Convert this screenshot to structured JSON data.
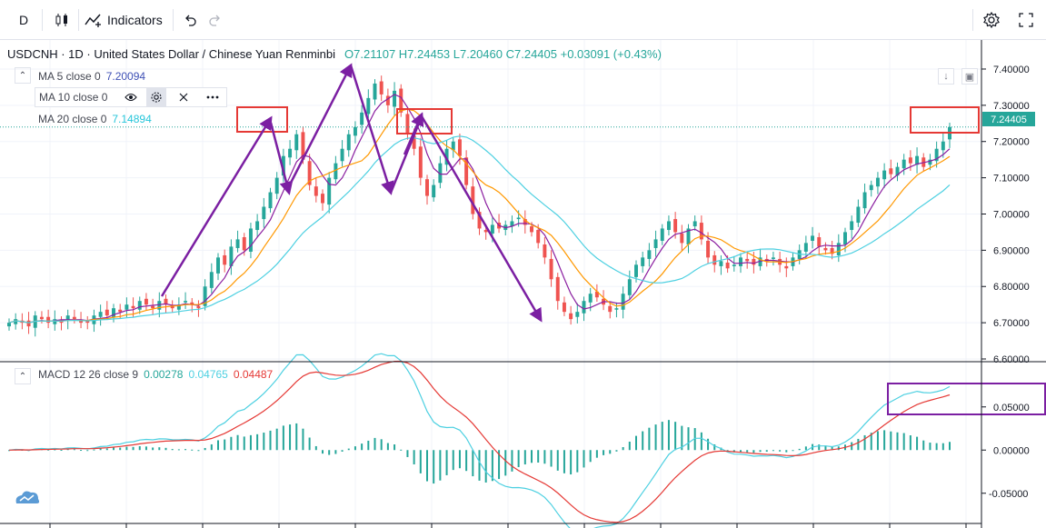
{
  "toolbar": {
    "interval_label": "D",
    "indicators_label": "Indicators"
  },
  "symbol": {
    "title": "USDCNH · 1D · United States Dollar / Chinese Yuan Renminbi",
    "ohlc": "O7.21107  H7.24453  L7.20460  C7.24405  +0.03091 (+0.43%)"
  },
  "indicators": {
    "ma5": {
      "label": "MA 5 close 0",
      "value": "7.20094"
    },
    "ma10": {
      "label": "MA 10 close 0"
    },
    "ma20": {
      "label": "MA 20 close 0",
      "value": "7.14894"
    },
    "macd": {
      "label": "MACD 12 26 close 9",
      "v1": "0.00278",
      "v2": "0.04765",
      "v3": "0.04487"
    }
  },
  "colors": {
    "up": "#26a69a",
    "down": "#ef5350",
    "ma5": "#8b1fa0",
    "ma10": "#ff9800",
    "ma20": "#4dd0e1",
    "macd_line": "#4dd0e1",
    "signal_line": "#e53935",
    "hist": "#26a69a",
    "annotation_red": "#e53935",
    "annotation_purple": "#7b1fa2"
  },
  "last_price_label": "7.24405",
  "chart_data": [
    {
      "type": "candlestick",
      "price_axis_ticks": [
        "7.40000",
        "7.30000",
        "7.20000",
        "7.10000",
        "7.00000",
        "6.90000",
        "6.80000",
        "6.70000",
        "6.60000"
      ],
      "ylim": [
        6.6,
        7.42
      ],
      "close_path": [
        6.7,
        6.71,
        6.7,
        6.69,
        6.72,
        6.71,
        6.7,
        6.71,
        6.7,
        6.72,
        6.71,
        6.7,
        6.7,
        6.72,
        6.73,
        6.72,
        6.74,
        6.73,
        6.75,
        6.74,
        6.76,
        6.75,
        6.74,
        6.76,
        6.75,
        6.74,
        6.75,
        6.76,
        6.75,
        6.74,
        6.8,
        6.84,
        6.88,
        6.86,
        6.91,
        6.93,
        6.9,
        6.96,
        6.98,
        7.02,
        7.06,
        7.1,
        7.16,
        7.18,
        7.22,
        7.15,
        7.08,
        7.05,
        7.03,
        7.1,
        7.14,
        7.18,
        7.22,
        7.24,
        7.28,
        7.32,
        7.36,
        7.33,
        7.3,
        7.34,
        7.28,
        7.22,
        7.18,
        7.1,
        7.05,
        7.08,
        7.14,
        7.18,
        7.2,
        7.16,
        7.08,
        7.0,
        6.96,
        6.95,
        6.97,
        6.96,
        6.97,
        6.98,
        6.99,
        6.97,
        6.95,
        6.92,
        6.88,
        6.82,
        6.76,
        6.73,
        6.71,
        6.73,
        6.76,
        6.78,
        6.77,
        6.75,
        6.73,
        6.74,
        6.78,
        6.82,
        6.86,
        6.88,
        6.9,
        6.93,
        6.96,
        6.98,
        6.95,
        6.92,
        6.96,
        6.98,
        6.93,
        6.88,
        6.86,
        6.87,
        6.85,
        6.86,
        6.88,
        6.87,
        6.86,
        6.88,
        6.87,
        6.88,
        6.86,
        6.85,
        6.88,
        6.9,
        6.92,
        6.94,
        6.91,
        6.9,
        6.89,
        6.92,
        6.95,
        6.98,
        7.02,
        7.06,
        7.08,
        7.1,
        7.12,
        7.11,
        7.13,
        7.15,
        7.14,
        7.16,
        7.13,
        7.15,
        7.18,
        7.2,
        7.24
      ],
      "macd_ticks": [
        "0.05000",
        "0.00000",
        "-0.05000"
      ],
      "macd_ylim": [
        -0.085,
        0.075
      ]
    }
  ]
}
